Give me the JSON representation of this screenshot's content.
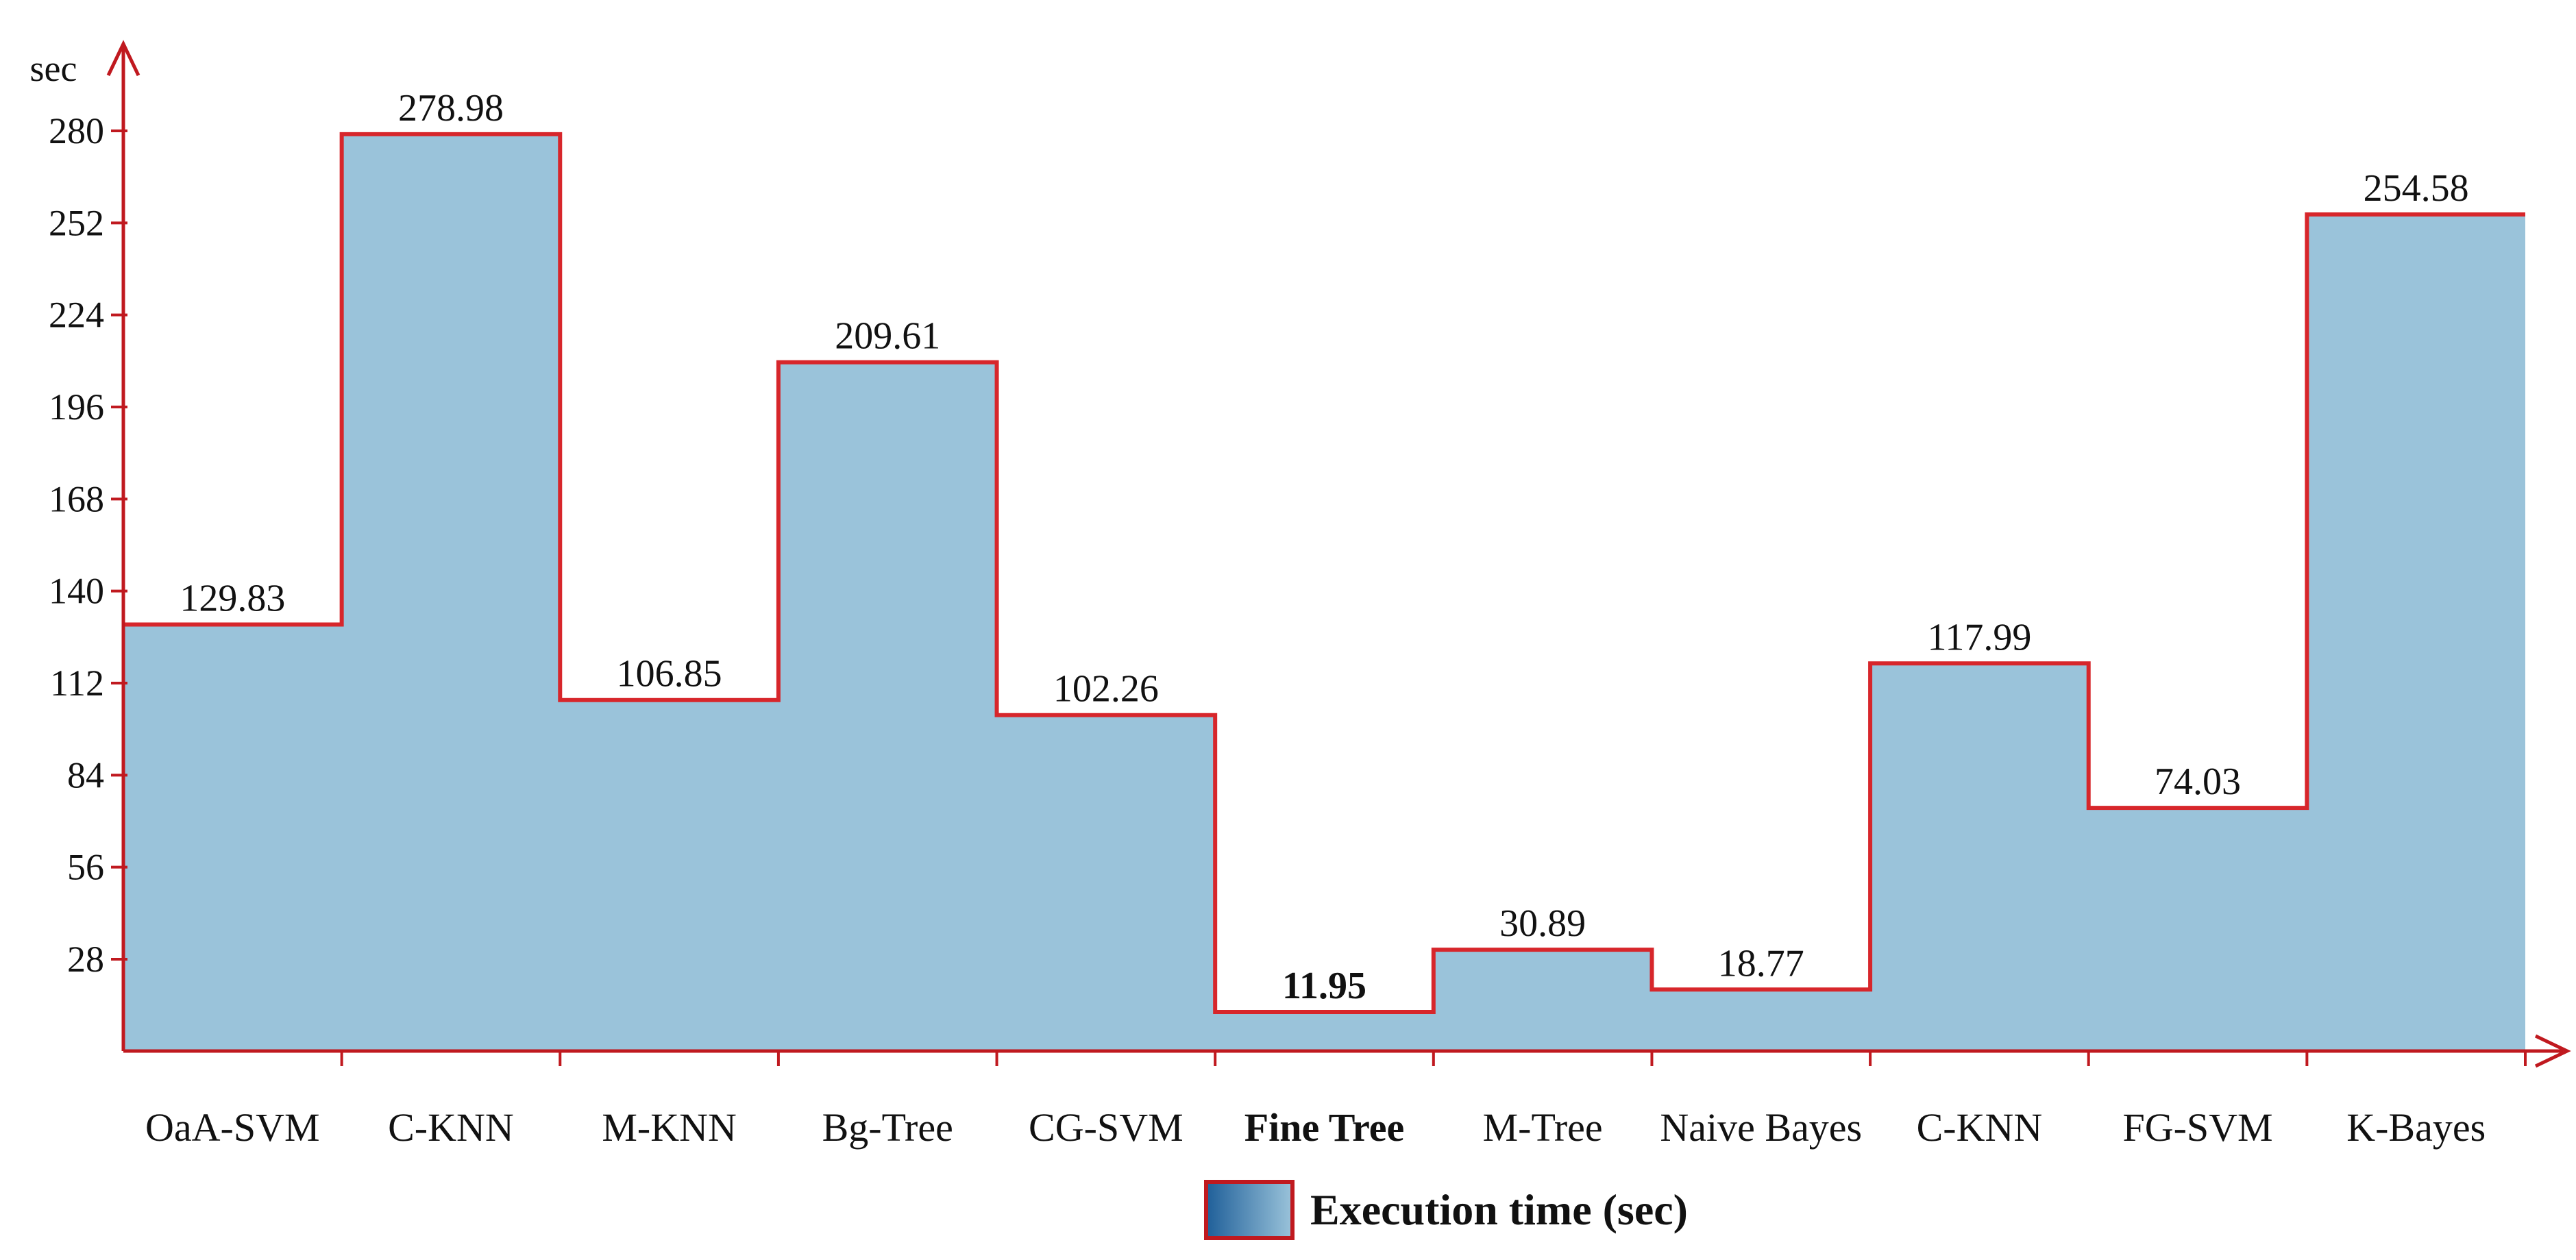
{
  "chart_data": {
    "type": "area",
    "step": true,
    "categories": [
      "OaA-SVM",
      "C-KNN",
      "M-KNN",
      "Bg-Tree",
      "CG-SVM",
      "Fine Tree",
      "M-Tree",
      "Naive Bayes",
      "C-KNN",
      "FG-SVM",
      "K-Bayes"
    ],
    "values": [
      129.83,
      278.98,
      106.85,
      209.61,
      102.26,
      11.95,
      30.89,
      18.77,
      117.99,
      74.03,
      254.58
    ],
    "value_labels": [
      "129.83",
      "278.98",
      "106.85",
      "209.61",
      "102.26",
      "11.95",
      "30.89",
      "18.77",
      "117.99",
      "74.03",
      "254.58"
    ],
    "highlight_category": "Fine Tree",
    "ylabel": "sec",
    "yticks": [
      28,
      56,
      84,
      112,
      140,
      168,
      196,
      224,
      252,
      280
    ],
    "ylim": [
      0,
      294
    ],
    "grid": false,
    "legend": {
      "placement": "bottom-center",
      "label": "Execution time (sec)"
    },
    "colors": {
      "fill": "#9ac3da",
      "line": "#d7262b",
      "axis": "#c0191f",
      "legend_swatch_start": "#1f5f99",
      "legend_swatch_end": "#9ac3da"
    }
  }
}
